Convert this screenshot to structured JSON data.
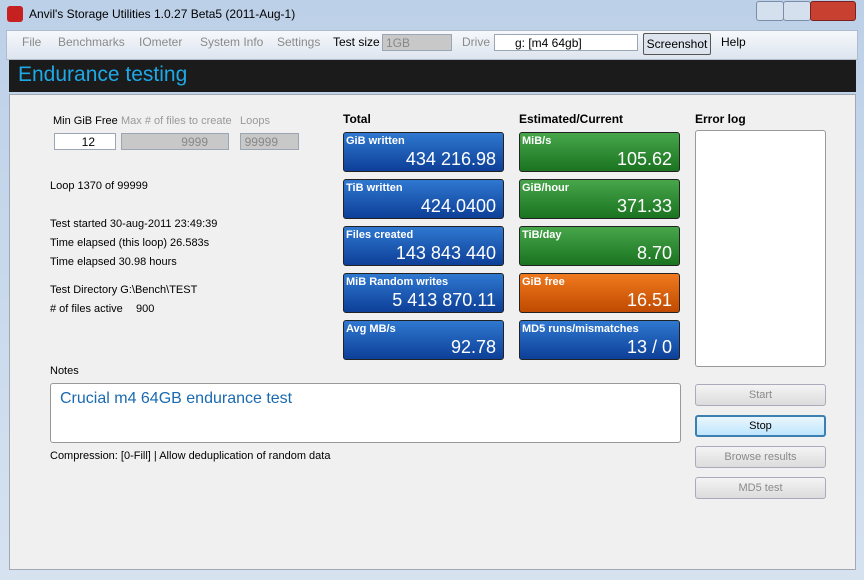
{
  "window": {
    "title": "Anvil's Storage Utilities 1.0.27 Beta5 (2011-Aug-1)"
  },
  "menu": {
    "items": [
      "File",
      "Benchmarks",
      "IOmeter",
      "System Info",
      "Settings"
    ],
    "test_size_label": "Test size",
    "test_size": "1GB",
    "drive_label": "Drive",
    "drive": "g: [m4 64gb]",
    "screenshot": "Screenshot",
    "help": "Help"
  },
  "header": {
    "title": "Endurance testing"
  },
  "settings": {
    "min_free_label": "Min GiB Free",
    "min_free": "12",
    "max_files_label": "Max # of files to create",
    "max_files": "9999",
    "loops_label": "Loops",
    "loops": "99999"
  },
  "status": {
    "loop": "Loop 1370 of 99999",
    "lines": [
      "Test started 30-aug-2011 23:49:39",
      "Time elapsed (this loop) 26.583s",
      "Time elapsed 30.98 hours"
    ],
    "directory": "Test Directory G:\\Bench\\TEST",
    "files_active_label": "# of files active",
    "files_active": "900"
  },
  "total": {
    "heading": "Total",
    "tiles": [
      {
        "label": "GiB written",
        "value": "434 216.98"
      },
      {
        "label": "TiB written",
        "value": "424.0400"
      },
      {
        "label": "Files created",
        "value": "143 843 440"
      },
      {
        "label": "MiB Random writes",
        "value": "5 413 870.11"
      },
      {
        "label": "Avg MB/s",
        "value": "92.78"
      }
    ]
  },
  "estimated": {
    "heading": "Estimated/Current",
    "tiles": [
      {
        "label": "MiB/s",
        "value": "105.62"
      },
      {
        "label": "GiB/hour",
        "value": "371.33"
      },
      {
        "label": "TiB/day",
        "value": "8.70"
      },
      {
        "label": "GiB free",
        "value": "16.51"
      },
      {
        "label": "MD5 runs/mismatches",
        "value": "13 / 0"
      }
    ]
  },
  "error_log": {
    "heading": "Error log"
  },
  "notes": {
    "label": "Notes",
    "text": "Crucial m4 64GB endurance test"
  },
  "compression": "Compression: [0-Fill] | Allow deduplication of random data",
  "buttons": [
    "Start",
    "Stop",
    "Browse results",
    "MD5 test"
  ]
}
